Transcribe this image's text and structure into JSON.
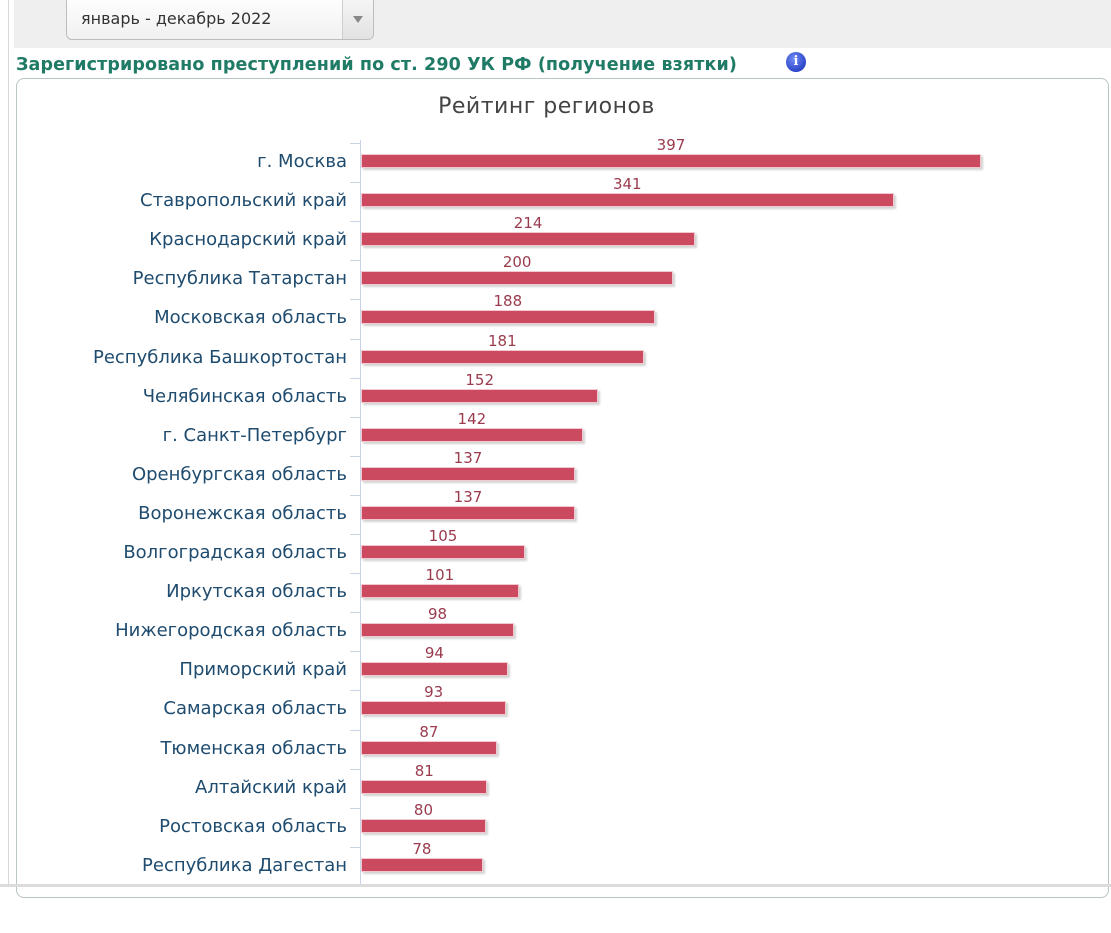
{
  "period_select": {
    "value": "январь - декабрь 2022"
  },
  "heading": "Зарегистрировано преступлений по ст. 290 УК РФ (получение взятки)",
  "info_icon": "i",
  "chart_data": {
    "type": "bar",
    "orientation": "horizontal",
    "title": "Рейтинг регионов",
    "xlabel": "",
    "ylabel": "",
    "grid": false,
    "legend": null,
    "bar_color": "#cc4a5f",
    "categories": [
      "г. Москва",
      "Ставропольский край",
      "Краснодарский край",
      "Республика Татарстан",
      "Московская область",
      "Республика Башкортостан",
      "Челябинская область",
      "г. Санкт-Петербург",
      "Оренбургская область",
      "Воронежская область",
      "Волгоградская область",
      "Иркутская область",
      "Нижегородская область",
      "Приморский край",
      "Самарская область",
      "Тюменская область",
      "Алтайский край",
      "Ростовская область",
      "Республика Дагестан"
    ],
    "values": [
      397,
      341,
      214,
      200,
      188,
      181,
      152,
      142,
      137,
      137,
      105,
      101,
      98,
      94,
      93,
      87,
      81,
      80,
      78
    ]
  }
}
